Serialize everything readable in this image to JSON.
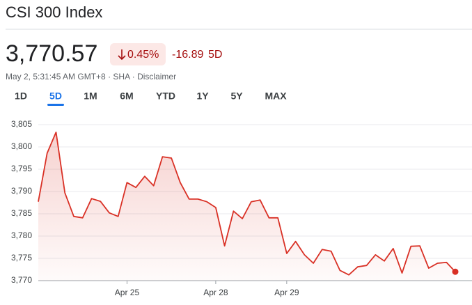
{
  "header": {
    "title": "CSI 300 Index",
    "price": "3,770.57",
    "change_percent": "0.45%",
    "change": "-16.89",
    "period": "5D",
    "subtitle": "May 2, 5:31:45 AM GMT+8 · SHA · Disclaimer"
  },
  "tabs": {
    "items": [
      "1D",
      "5D",
      "1M",
      "6M",
      "YTD",
      "1Y",
      "5Y",
      "MAX"
    ],
    "selected": "5D"
  },
  "chart_data": {
    "type": "line",
    "color": "#d93025",
    "grid": true,
    "categories": [
      null,
      null,
      null,
      null,
      null,
      null,
      null,
      null,
      null,
      null,
      "Apr 25",
      null,
      null,
      null,
      null,
      null,
      null,
      null,
      null,
      null,
      "Apr 28",
      null,
      null,
      null,
      null,
      null,
      null,
      null,
      "Apr 29",
      null,
      null,
      null,
      null,
      null,
      null,
      null,
      null,
      null,
      null,
      null,
      null,
      null,
      null,
      null,
      null,
      null,
      null,
      null
    ],
    "values": [
      3787.7,
      3798.6,
      3803.3,
      3789.7,
      3784.4,
      3784.1,
      3788.4,
      3787.8,
      3785.2,
      3784.4,
      3792.0,
      3790.9,
      3793.4,
      3791.3,
      3797.8,
      3797.5,
      3792.0,
      3788.3,
      3788.3,
      3787.7,
      3786.4,
      3777.8,
      3785.6,
      3783.9,
      3787.7,
      3788.1,
      3784.1,
      3784.1,
      3776.1,
      3778.8,
      3775.8,
      3773.9,
      3777.0,
      3776.6,
      3772.3,
      3771.3,
      3773.1,
      3773.4,
      3775.8,
      3774.4,
      3777.2,
      3771.7,
      3777.7,
      3777.8,
      3772.8,
      3773.9,
      3774.1,
      3772.0
    ],
    "ylim": [
      3770,
      3805
    ],
    "yticks": [
      {
        "value": 3770,
        "label": "3,770"
      },
      {
        "value": 3775,
        "label": "3,775"
      },
      {
        "value": 3780,
        "label": "3,780"
      },
      {
        "value": 3785,
        "label": "3,785"
      },
      {
        "value": 3790,
        "label": "3,790"
      },
      {
        "value": 3795,
        "label": "3,795"
      },
      {
        "value": 3800,
        "label": "3,800"
      },
      {
        "value": 3805,
        "label": "3,805"
      }
    ]
  }
}
